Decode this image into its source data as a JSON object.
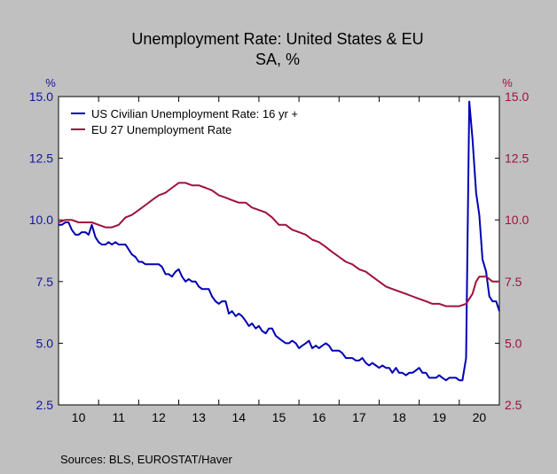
{
  "chart_data": {
    "type": "line",
    "title": "Unemployment Rate: United States & EU",
    "subtitle": "SA, %",
    "left_axis_unit": "%",
    "right_axis_unit": "%",
    "source": "Sources:  BLS, EUROSTAT/Haver",
    "y_ticks": [
      "2.5",
      "5.0",
      "7.5",
      "10.0",
      "12.5",
      "15.0"
    ],
    "x_ticks": [
      "10",
      "11",
      "12",
      "13",
      "14",
      "15",
      "16",
      "17",
      "18",
      "19",
      "20"
    ],
    "xlim": [
      2010.0,
      2021.0
    ],
    "ylim": [
      2.5,
      15.0
    ],
    "legend_position": "top-left",
    "grid": false,
    "series": [
      {
        "name": "US Civilian Unemployment Rate: 16 yr +",
        "color": "#0000b4",
        "axis": "left",
        "points": [
          [
            2010.0,
            9.8
          ],
          [
            2010.08,
            9.8
          ],
          [
            2010.17,
            9.9
          ],
          [
            2010.25,
            9.9
          ],
          [
            2010.33,
            9.6
          ],
          [
            2010.42,
            9.4
          ],
          [
            2010.5,
            9.4
          ],
          [
            2010.58,
            9.5
          ],
          [
            2010.67,
            9.5
          ],
          [
            2010.75,
            9.4
          ],
          [
            2010.83,
            9.8
          ],
          [
            2010.92,
            9.3
          ],
          [
            2011.0,
            9.1
          ],
          [
            2011.08,
            9.0
          ],
          [
            2011.17,
            9.0
          ],
          [
            2011.25,
            9.1
          ],
          [
            2011.33,
            9.0
          ],
          [
            2011.42,
            9.1
          ],
          [
            2011.5,
            9.0
          ],
          [
            2011.58,
            9.0
          ],
          [
            2011.67,
            9.0
          ],
          [
            2011.75,
            8.8
          ],
          [
            2011.83,
            8.6
          ],
          [
            2011.92,
            8.5
          ],
          [
            2012.0,
            8.3
          ],
          [
            2012.08,
            8.3
          ],
          [
            2012.17,
            8.2
          ],
          [
            2012.25,
            8.2
          ],
          [
            2012.33,
            8.2
          ],
          [
            2012.42,
            8.2
          ],
          [
            2012.5,
            8.2
          ],
          [
            2012.58,
            8.1
          ],
          [
            2012.67,
            7.8
          ],
          [
            2012.75,
            7.8
          ],
          [
            2012.83,
            7.7
          ],
          [
            2012.92,
            7.9
          ],
          [
            2013.0,
            8.0
          ],
          [
            2013.08,
            7.7
          ],
          [
            2013.17,
            7.5
          ],
          [
            2013.25,
            7.6
          ],
          [
            2013.33,
            7.5
          ],
          [
            2013.42,
            7.5
          ],
          [
            2013.5,
            7.3
          ],
          [
            2013.58,
            7.2
          ],
          [
            2013.67,
            7.2
          ],
          [
            2013.75,
            7.2
          ],
          [
            2013.83,
            6.9
          ],
          [
            2013.92,
            6.7
          ],
          [
            2014.0,
            6.6
          ],
          [
            2014.08,
            6.7
          ],
          [
            2014.17,
            6.7
          ],
          [
            2014.25,
            6.2
          ],
          [
            2014.33,
            6.3
          ],
          [
            2014.42,
            6.1
          ],
          [
            2014.5,
            6.2
          ],
          [
            2014.58,
            6.1
          ],
          [
            2014.67,
            5.9
          ],
          [
            2014.75,
            5.7
          ],
          [
            2014.83,
            5.8
          ],
          [
            2014.92,
            5.6
          ],
          [
            2015.0,
            5.7
          ],
          [
            2015.08,
            5.5
          ],
          [
            2015.17,
            5.4
          ],
          [
            2015.25,
            5.6
          ],
          [
            2015.33,
            5.6
          ],
          [
            2015.42,
            5.3
          ],
          [
            2015.5,
            5.2
          ],
          [
            2015.58,
            5.1
          ],
          [
            2015.67,
            5.0
          ],
          [
            2015.75,
            5.0
          ],
          [
            2015.83,
            5.1
          ],
          [
            2015.92,
            5.0
          ],
          [
            2016.0,
            4.8
          ],
          [
            2016.08,
            4.9
          ],
          [
            2016.17,
            5.0
          ],
          [
            2016.25,
            5.1
          ],
          [
            2016.33,
            4.8
          ],
          [
            2016.42,
            4.9
          ],
          [
            2016.5,
            4.8
          ],
          [
            2016.58,
            4.9
          ],
          [
            2016.67,
            5.0
          ],
          [
            2016.75,
            4.9
          ],
          [
            2016.83,
            4.7
          ],
          [
            2016.92,
            4.7
          ],
          [
            2017.0,
            4.7
          ],
          [
            2017.08,
            4.6
          ],
          [
            2017.17,
            4.4
          ],
          [
            2017.25,
            4.4
          ],
          [
            2017.33,
            4.4
          ],
          [
            2017.42,
            4.3
          ],
          [
            2017.5,
            4.3
          ],
          [
            2017.58,
            4.4
          ],
          [
            2017.67,
            4.2
          ],
          [
            2017.75,
            4.1
          ],
          [
            2017.83,
            4.2
          ],
          [
            2017.92,
            4.1
          ],
          [
            2018.0,
            4.0
          ],
          [
            2018.08,
            4.1
          ],
          [
            2018.17,
            4.0
          ],
          [
            2018.25,
            4.0
          ],
          [
            2018.33,
            3.8
          ],
          [
            2018.42,
            4.0
          ],
          [
            2018.5,
            3.8
          ],
          [
            2018.58,
            3.8
          ],
          [
            2018.67,
            3.7
          ],
          [
            2018.75,
            3.8
          ],
          [
            2018.83,
            3.8
          ],
          [
            2018.92,
            3.9
          ],
          [
            2019.0,
            4.0
          ],
          [
            2019.08,
            3.8
          ],
          [
            2019.17,
            3.8
          ],
          [
            2019.25,
            3.6
          ],
          [
            2019.33,
            3.6
          ],
          [
            2019.42,
            3.6
          ],
          [
            2019.5,
            3.7
          ],
          [
            2019.58,
            3.6
          ],
          [
            2019.67,
            3.5
          ],
          [
            2019.75,
            3.6
          ],
          [
            2019.83,
            3.6
          ],
          [
            2019.92,
            3.6
          ],
          [
            2020.0,
            3.5
          ],
          [
            2020.08,
            3.5
          ],
          [
            2020.17,
            4.4
          ],
          [
            2020.25,
            14.8
          ],
          [
            2020.33,
            13.3
          ],
          [
            2020.42,
            11.1
          ],
          [
            2020.5,
            10.2
          ],
          [
            2020.58,
            8.4
          ],
          [
            2020.67,
            7.9
          ],
          [
            2020.75,
            6.9
          ],
          [
            2020.83,
            6.7
          ],
          [
            2020.92,
            6.7
          ],
          [
            2021.0,
            6.3
          ]
        ]
      },
      {
        "name": "EU 27 Unemployment Rate",
        "color": "#a0103c",
        "axis": "right",
        "points": [
          [
            2010.0,
            9.9
          ],
          [
            2010.17,
            10.0
          ],
          [
            2010.33,
            10.0
          ],
          [
            2010.5,
            9.9
          ],
          [
            2010.67,
            9.9
          ],
          [
            2010.83,
            9.9
          ],
          [
            2011.0,
            9.8
          ],
          [
            2011.17,
            9.7
          ],
          [
            2011.33,
            9.7
          ],
          [
            2011.5,
            9.8
          ],
          [
            2011.67,
            10.1
          ],
          [
            2011.83,
            10.2
          ],
          [
            2012.0,
            10.4
          ],
          [
            2012.17,
            10.6
          ],
          [
            2012.33,
            10.8
          ],
          [
            2012.5,
            11.0
          ],
          [
            2012.67,
            11.1
          ],
          [
            2012.83,
            11.3
          ],
          [
            2013.0,
            11.5
          ],
          [
            2013.17,
            11.5
          ],
          [
            2013.33,
            11.4
          ],
          [
            2013.5,
            11.4
          ],
          [
            2013.67,
            11.3
          ],
          [
            2013.83,
            11.2
          ],
          [
            2014.0,
            11.0
          ],
          [
            2014.17,
            10.9
          ],
          [
            2014.33,
            10.8
          ],
          [
            2014.5,
            10.7
          ],
          [
            2014.67,
            10.7
          ],
          [
            2014.83,
            10.5
          ],
          [
            2015.0,
            10.4
          ],
          [
            2015.17,
            10.3
          ],
          [
            2015.33,
            10.1
          ],
          [
            2015.5,
            9.8
          ],
          [
            2015.67,
            9.8
          ],
          [
            2015.83,
            9.6
          ],
          [
            2016.0,
            9.5
          ],
          [
            2016.17,
            9.4
          ],
          [
            2016.33,
            9.2
          ],
          [
            2016.5,
            9.1
          ],
          [
            2016.67,
            8.9
          ],
          [
            2016.83,
            8.7
          ],
          [
            2017.0,
            8.5
          ],
          [
            2017.17,
            8.3
          ],
          [
            2017.33,
            8.2
          ],
          [
            2017.5,
            8.0
          ],
          [
            2017.67,
            7.9
          ],
          [
            2017.83,
            7.7
          ],
          [
            2018.0,
            7.5
          ],
          [
            2018.17,
            7.3
          ],
          [
            2018.33,
            7.2
          ],
          [
            2018.5,
            7.1
          ],
          [
            2018.67,
            7.0
          ],
          [
            2018.83,
            6.9
          ],
          [
            2019.0,
            6.8
          ],
          [
            2019.17,
            6.7
          ],
          [
            2019.33,
            6.6
          ],
          [
            2019.5,
            6.6
          ],
          [
            2019.67,
            6.5
          ],
          [
            2019.83,
            6.5
          ],
          [
            2020.0,
            6.5
          ],
          [
            2020.17,
            6.6
          ],
          [
            2020.25,
            6.8
          ],
          [
            2020.33,
            7.0
          ],
          [
            2020.42,
            7.5
          ],
          [
            2020.5,
            7.7
          ],
          [
            2020.58,
            7.7
          ],
          [
            2020.67,
            7.7
          ],
          [
            2020.75,
            7.6
          ],
          [
            2020.83,
            7.5
          ],
          [
            2020.92,
            7.5
          ],
          [
            2021.0,
            7.5
          ]
        ]
      }
    ]
  }
}
